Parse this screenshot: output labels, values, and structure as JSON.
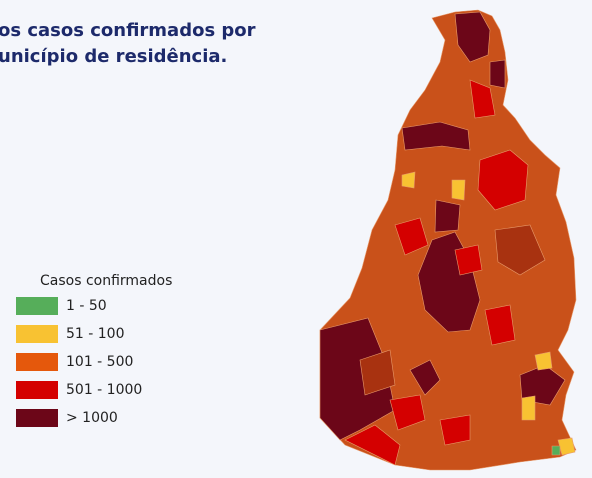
{
  "title": {
    "line1": "os casos confirmados por",
    "line2": "unicípio de residência."
  },
  "legend": {
    "title": "Casos confirmados",
    "items": [
      {
        "label": "1 - 50",
        "color": "#56ae5a"
      },
      {
        "label": "51 - 100",
        "color": "#f8c232"
      },
      {
        "label": "101 - 500",
        "color": "#e5580c"
      },
      {
        "label": "501 - 1000",
        "color": "#d40000"
      },
      {
        "label": "> 1000",
        "color": "#6c0618"
      }
    ]
  }
}
